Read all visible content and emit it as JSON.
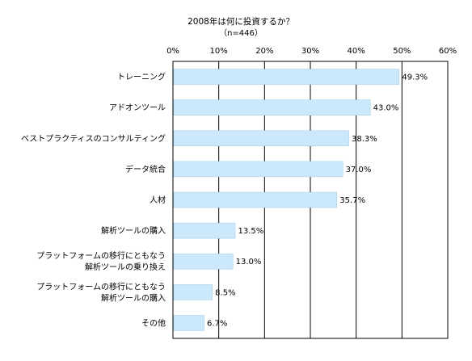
{
  "chart_data": {
    "type": "bar",
    "orientation": "horizontal",
    "title": "2008年は何に投資するか？",
    "subtitle": "（n=446）",
    "categories": [
      "トレーニング",
      "アドオンツール",
      "ベストプラクティスのコンサルティング",
      "データ統合",
      "人材",
      "解析ツールの購入",
      "プラットフォームの移行にともなう\n解析ツールの乗り換え",
      "プラットフォームの移行にともなう\n解析ツールの購入",
      "その他"
    ],
    "values": [
      49.3,
      43.0,
      38.3,
      37.0,
      35.7,
      13.5,
      13.0,
      8.5,
      6.7
    ],
    "value_labels": [
      "49.3%",
      "43.0%",
      "38.3%",
      "37.0%",
      "35.7%",
      "13.5%",
      "13.0%",
      "8.5%",
      "6.7%"
    ],
    "xticks": [
      "0%",
      "10%",
      "20%",
      "30%",
      "40%",
      "50%",
      "60%"
    ],
    "xlim": [
      0,
      60
    ],
    "grid": true,
    "bar_color": "#cce9fb",
    "bar_border_color": "#9ccbe6"
  }
}
